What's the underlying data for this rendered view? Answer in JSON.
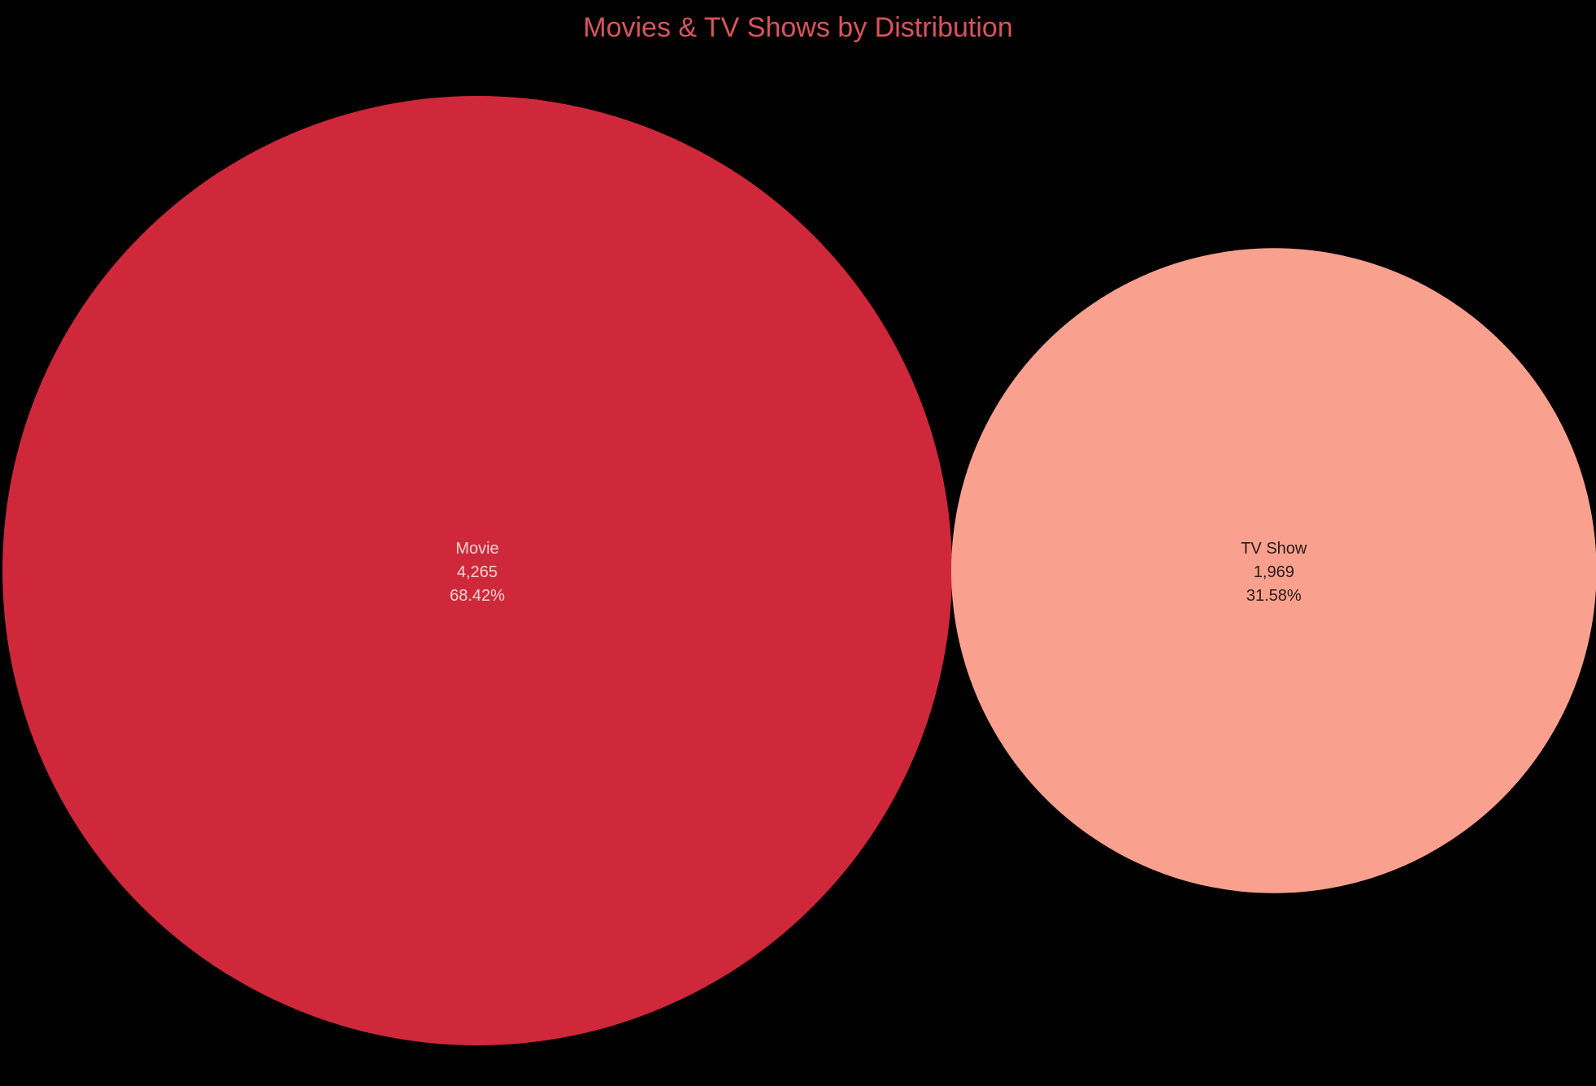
{
  "chart_data": {
    "type": "bubble",
    "title": "Movies & TV Shows by Distribution",
    "categories": [
      "Movie",
      "TV Show"
    ],
    "values": [
      4265,
      1969
    ],
    "value_labels": [
      "4,265",
      "1,969"
    ],
    "percent_labels": [
      "68.42%",
      "31.58%"
    ],
    "colors": [
      "#d0283b",
      "#f9a18e"
    ],
    "label_colors": [
      "#f2d6d6",
      "#2a1a1a"
    ],
    "title_color": "#d9545c",
    "background": "#000000"
  }
}
